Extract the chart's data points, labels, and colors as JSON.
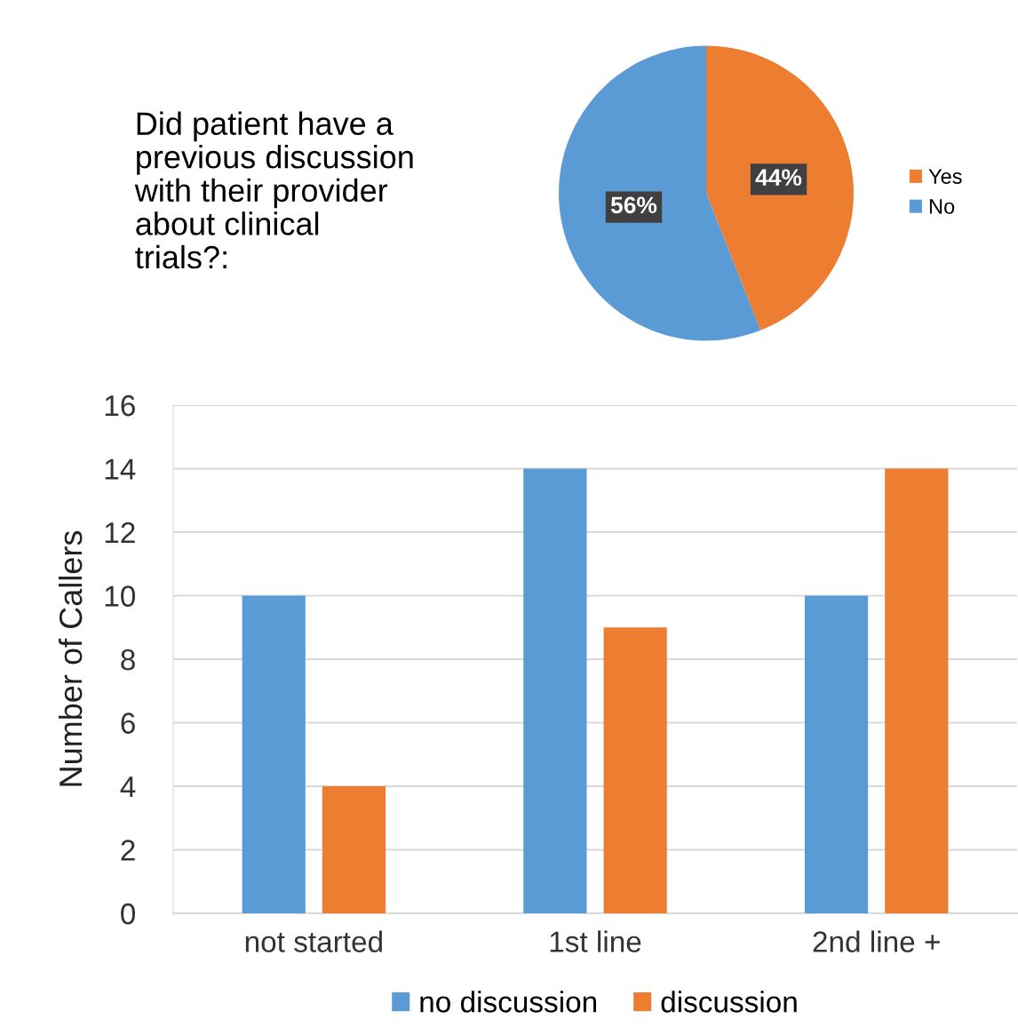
{
  "chart_data": [
    {
      "type": "pie",
      "title": "Did patient have a\nprevious discussion\nwith their provider\nabout clinical\ntrials?:",
      "categories": [
        "Yes",
        "No"
      ],
      "values": [
        44,
        56
      ],
      "colors": [
        "#ed7d31",
        "#5b9bd5"
      ],
      "value_labels": [
        "44%",
        "56%"
      ],
      "legend": "right"
    },
    {
      "type": "bar",
      "ylabel": "Number of Callers",
      "categories": [
        "not started",
        "1st line",
        "2nd line +"
      ],
      "series": [
        {
          "name": "no discussion",
          "color": "#5b9bd5",
          "values": [
            10,
            14,
            10
          ]
        },
        {
          "name": "discussion",
          "color": "#ed7d31",
          "values": [
            4,
            9,
            14
          ]
        }
      ],
      "ylim": [
        0,
        16
      ],
      "yticks": [
        0,
        2,
        4,
        6,
        8,
        10,
        12,
        14,
        16
      ],
      "grid": "y",
      "legend": "bottom"
    }
  ]
}
